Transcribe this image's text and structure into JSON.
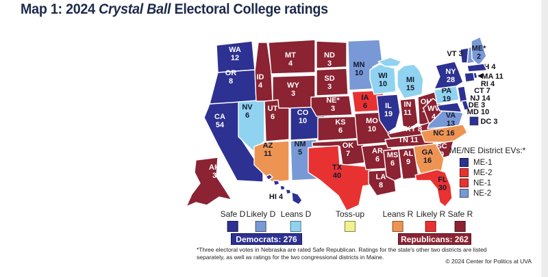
{
  "title": {
    "prefix": "Map 1: 2024 ",
    "italic": "Crystal Ball",
    "suffix": " Electoral College ratings"
  },
  "rating_colors": {
    "safe_d": "#2d3192",
    "likely_d": "#7899d6",
    "leans_d": "#90d3f0",
    "tossup": "#f1f18d",
    "leans_r": "#ee9452",
    "likely_r": "#e83232",
    "safe_r": "#8b2332"
  },
  "legend_items": [
    {
      "label": "Safe D",
      "rating": "safe_d"
    },
    {
      "label": "Likely D",
      "rating": "likely_d"
    },
    {
      "label": "Leans D",
      "rating": "leans_d"
    },
    {
      "label": "Toss-up",
      "rating": "tossup"
    },
    {
      "label": "Leans R",
      "rating": "leans_r"
    },
    {
      "label": "Likely R",
      "rating": "likely_r"
    },
    {
      "label": "Safe R",
      "rating": "safe_r"
    }
  ],
  "totals": {
    "democrats": "Democrats: 276",
    "republicans": "Republicans: 262"
  },
  "districts_box": {
    "title": "ME/NE District EVs:*",
    "items": [
      {
        "label": "ME-1",
        "rating": "safe_d"
      },
      {
        "label": "ME-2",
        "rating": "likely_r"
      },
      {
        "label": "NE-1",
        "rating": "likely_r"
      },
      {
        "label": "NE-2",
        "rating": "likely_d"
      }
    ]
  },
  "map_data": {
    "type": "choropleth_map",
    "unit": "electoral_votes",
    "states": [
      {
        "abbr": "WA",
        "ev": 12,
        "rating": "safe_d"
      },
      {
        "abbr": "OR",
        "ev": 8,
        "rating": "safe_d"
      },
      {
        "abbr": "CA",
        "ev": 54,
        "rating": "safe_d"
      },
      {
        "abbr": "NV",
        "ev": 6,
        "rating": "leans_d"
      },
      {
        "abbr": "ID",
        "ev": 4,
        "rating": "safe_r"
      },
      {
        "abbr": "MT",
        "ev": 4,
        "rating": "safe_r"
      },
      {
        "abbr": "WY",
        "ev": 3,
        "rating": "safe_r"
      },
      {
        "abbr": "UT",
        "ev": 6,
        "rating": "safe_r"
      },
      {
        "abbr": "CO",
        "ev": 10,
        "rating": "safe_d"
      },
      {
        "abbr": "AZ",
        "ev": 11,
        "rating": "leans_r"
      },
      {
        "abbr": "NM",
        "ev": 5,
        "rating": "likely_d"
      },
      {
        "abbr": "ND",
        "ev": 3,
        "rating": "safe_r"
      },
      {
        "abbr": "SD",
        "ev": 3,
        "rating": "safe_r"
      },
      {
        "abbr": "NE",
        "ev": 3,
        "rating": "safe_r",
        "display": "NE*"
      },
      {
        "abbr": "KS",
        "ev": 6,
        "rating": "safe_r"
      },
      {
        "abbr": "OK",
        "ev": 7,
        "rating": "safe_r"
      },
      {
        "abbr": "TX",
        "ev": 40,
        "rating": "likely_r"
      },
      {
        "abbr": "MN",
        "ev": 10,
        "rating": "likely_d"
      },
      {
        "abbr": "IA",
        "ev": 6,
        "rating": "likely_r"
      },
      {
        "abbr": "MO",
        "ev": 10,
        "rating": "safe_r"
      },
      {
        "abbr": "AR",
        "ev": 6,
        "rating": "safe_r"
      },
      {
        "abbr": "LA",
        "ev": 8,
        "rating": "safe_r"
      },
      {
        "abbr": "WI",
        "ev": 10,
        "rating": "leans_d"
      },
      {
        "abbr": "IL",
        "ev": 19,
        "rating": "safe_d"
      },
      {
        "abbr": "MI",
        "ev": 15,
        "rating": "leans_d"
      },
      {
        "abbr": "IN",
        "ev": 11,
        "rating": "safe_r"
      },
      {
        "abbr": "OH",
        "ev": 17,
        "rating": "safe_r"
      },
      {
        "abbr": "KY",
        "ev": 8,
        "rating": "safe_r"
      },
      {
        "abbr": "TN",
        "ev": 11,
        "rating": "safe_r"
      },
      {
        "abbr": "WV",
        "ev": 4,
        "rating": "safe_r"
      },
      {
        "abbr": "VA",
        "ev": 13,
        "rating": "likely_d"
      },
      {
        "abbr": "NC",
        "ev": 16,
        "rating": "leans_r"
      },
      {
        "abbr": "SC",
        "ev": 9,
        "rating": "safe_r"
      },
      {
        "abbr": "GA",
        "ev": 16,
        "rating": "leans_r"
      },
      {
        "abbr": "AL",
        "ev": 9,
        "rating": "safe_r"
      },
      {
        "abbr": "MS",
        "ev": 6,
        "rating": "safe_r"
      },
      {
        "abbr": "FL",
        "ev": 30,
        "rating": "likely_r"
      },
      {
        "abbr": "PA",
        "ev": 19,
        "rating": "leans_d"
      },
      {
        "abbr": "NY",
        "ev": 28,
        "rating": "safe_d"
      },
      {
        "abbr": "NJ",
        "ev": 14,
        "rating": "safe_d"
      },
      {
        "abbr": "DE",
        "ev": 3,
        "rating": "safe_d"
      },
      {
        "abbr": "MD",
        "ev": 10,
        "rating": "safe_d"
      },
      {
        "abbr": "VT",
        "ev": 3,
        "rating": "safe_d"
      },
      {
        "abbr": "NH",
        "ev": 4,
        "rating": "likely_d"
      },
      {
        "abbr": "ME",
        "ev": 2,
        "rating": "likely_d",
        "display": "ME*"
      },
      {
        "abbr": "MA",
        "ev": 11,
        "rating": "safe_d"
      },
      {
        "abbr": "RI",
        "ev": 4,
        "rating": "safe_d"
      },
      {
        "abbr": "CT",
        "ev": 7,
        "rating": "safe_d"
      },
      {
        "abbr": "AK",
        "ev": 3,
        "rating": "safe_r"
      },
      {
        "abbr": "HI",
        "ev": 4,
        "rating": "safe_d"
      },
      {
        "abbr": "DC",
        "ev": 3,
        "rating": "safe_d"
      }
    ]
  },
  "footnote": {
    "line1": "*Three electoral votes in Nebraska are rated Safe Republican. Ratings for the state's other two districts are listed",
    "line2": "separately, as well as ratings for the two congressional districts in Maine.",
    "copyright": "© 2024 Center for Politics at UVA"
  }
}
